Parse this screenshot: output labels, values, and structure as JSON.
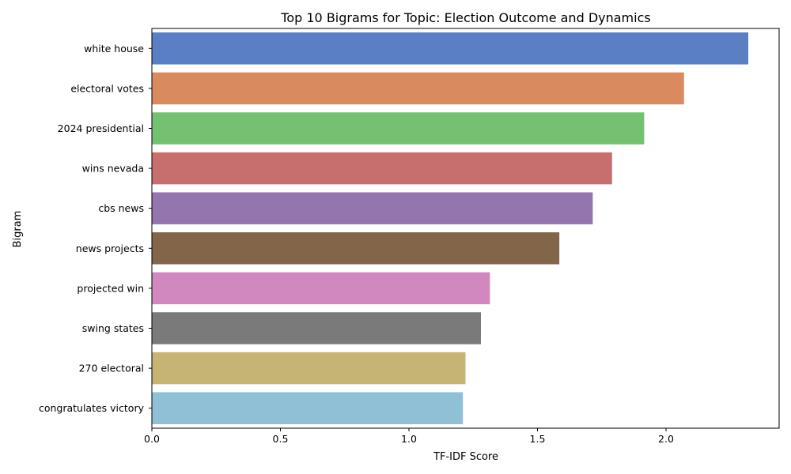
{
  "chart_data": {
    "type": "bar",
    "orientation": "horizontal",
    "title": "Top 10 Bigrams for Topic: Election Outcome and Dynamics",
    "xlabel": "TF-IDF Score",
    "ylabel": "Bigram",
    "categories": [
      "white house",
      "electoral votes",
      "2024 presidential",
      "wins nevada",
      "cbs news",
      "news projects",
      "projected win",
      "swing states",
      "270 electoral",
      "congratulates victory"
    ],
    "values": [
      2.32,
      2.07,
      1.915,
      1.79,
      1.715,
      1.585,
      1.315,
      1.28,
      1.22,
      1.21
    ],
    "colors": [
      "#5a7fc2",
      "#d98b5f",
      "#74c172",
      "#c66f6e",
      "#9575ad",
      "#83654a",
      "#d088bf",
      "#7a7a7a",
      "#c6b474",
      "#8fc0d6"
    ],
    "xlim": [
      0,
      2.44
    ],
    "xticks": [
      0.0,
      0.5,
      1.0,
      1.5,
      2.0
    ],
    "xtick_labels": [
      "0.0",
      "0.5",
      "1.0",
      "1.5",
      "2.0"
    ],
    "grid": false,
    "legend": "none"
  }
}
